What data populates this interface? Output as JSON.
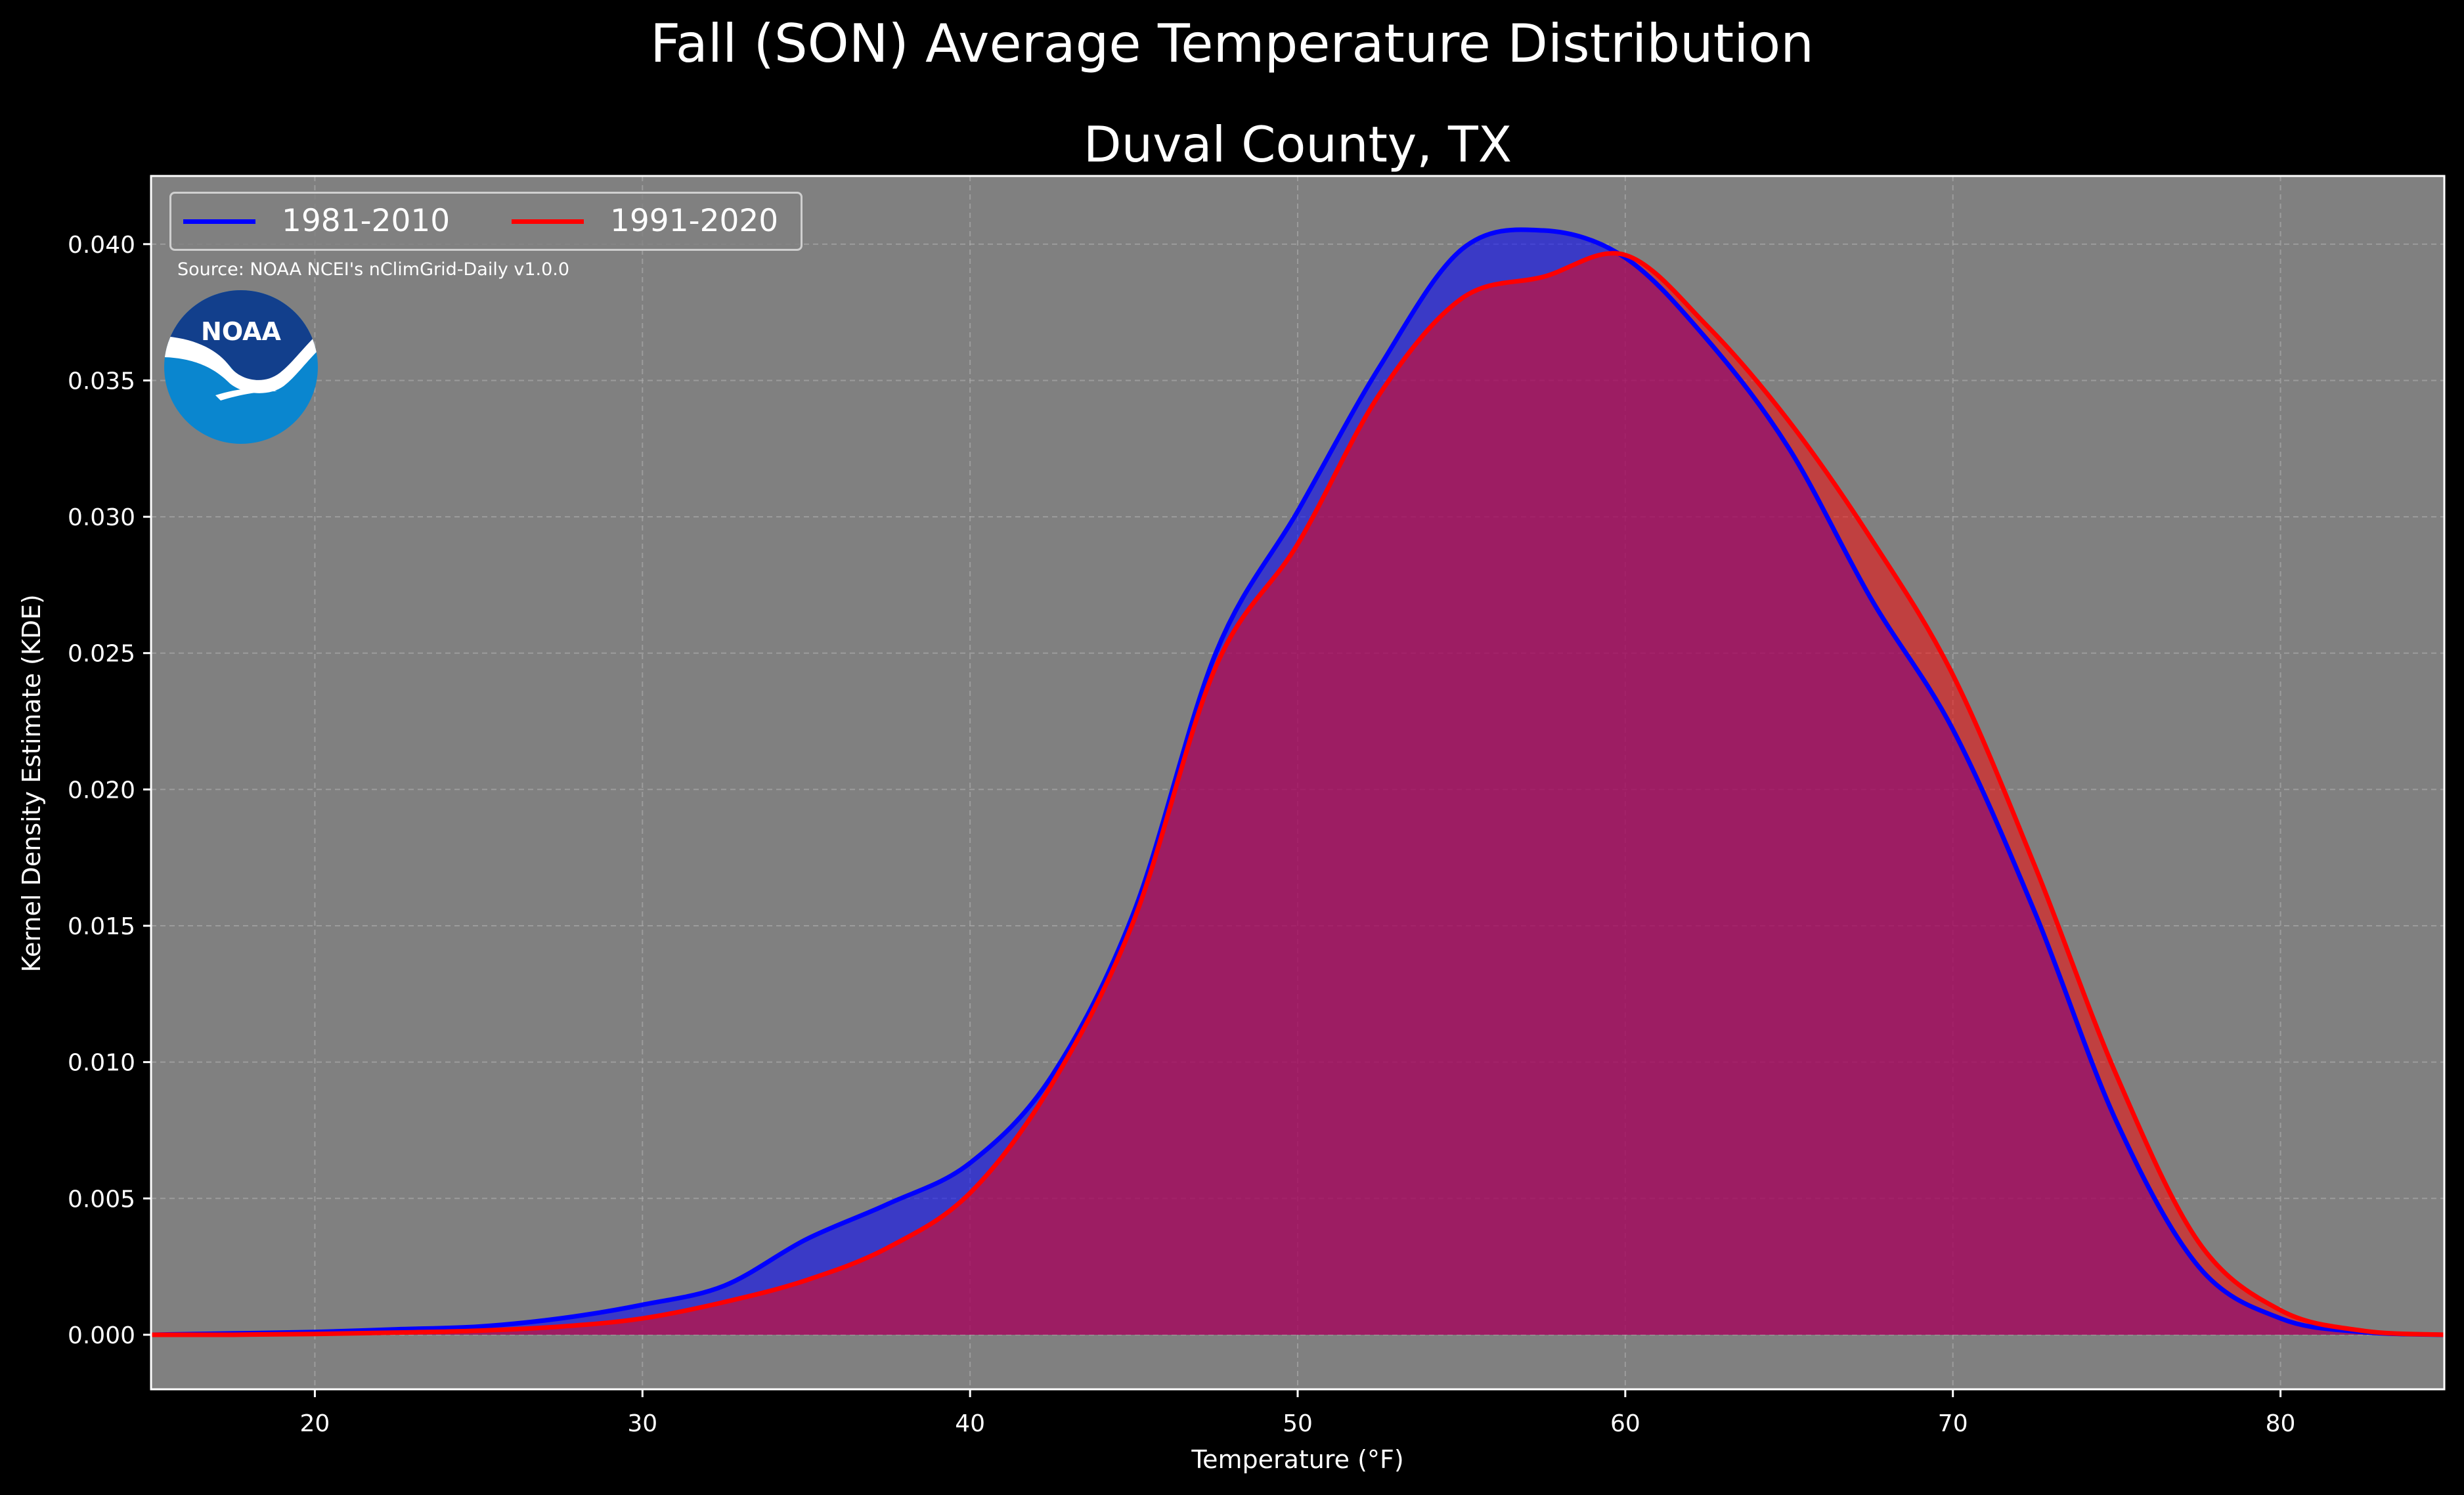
{
  "figure": {
    "suptitle": "Fall (SON) Average Temperature Distribution",
    "axes_title": "Duval County, TX",
    "source_note": "Source: NOAA NCEI's nClimGrid-Daily v1.0.0",
    "logo_text": "NOAA",
    "logo_icon": "noaa-logo",
    "colors": {
      "figure_bg": "#000000",
      "axes_bg": "#808080",
      "series_1981": "#0000ff",
      "series_1991": "#ff0000",
      "overlap_fill": "#9e1f5a"
    }
  },
  "chart_data": {
    "type": "area",
    "xlabel": "Temperature ($^\\circ$F)",
    "xlabel_display": "Temperature (°F)",
    "ylabel": "Kernel Density Estimate (KDE)",
    "xlim": [
      15,
      85
    ],
    "ylim": [
      -0.002,
      0.0425
    ],
    "xticks": [
      20,
      30,
      40,
      50,
      60,
      70,
      80
    ],
    "yticks": [
      0.0,
      0.005,
      0.01,
      0.015,
      0.02,
      0.025,
      0.03,
      0.035,
      0.04
    ],
    "ytick_labels": [
      "0.000",
      "0.005",
      "0.010",
      "0.015",
      "0.020",
      "0.025",
      "0.030",
      "0.035",
      "0.040"
    ],
    "grid": true,
    "legend_placement": "top-left",
    "x": [
      15,
      17.5,
      20,
      22.5,
      25,
      27.5,
      30,
      32.5,
      35,
      37.5,
      40,
      42.5,
      45,
      47.5,
      50,
      52.5,
      55,
      57.5,
      60,
      62.5,
      65,
      67.5,
      70,
      72.5,
      75,
      77.5,
      80,
      82.5,
      85
    ],
    "series": [
      {
        "name": "1981-2010",
        "color": "#0000ff",
        "values": [
          0.0,
          5e-05,
          0.0001,
          0.0002,
          0.0003,
          0.0006,
          0.0011,
          0.0018,
          0.0035,
          0.0048,
          0.0063,
          0.0095,
          0.0155,
          0.025,
          0.0302,
          0.0355,
          0.0398,
          0.0405,
          0.0395,
          0.0365,
          0.0325,
          0.027,
          0.0222,
          0.0155,
          0.0078,
          0.0025,
          0.0006,
          0.0001,
          0.0
        ]
      },
      {
        "name": "1991-2020",
        "color": "#ff0000",
        "values": [
          0.0,
          0.0,
          3e-05,
          8e-05,
          0.00015,
          0.0003,
          0.0006,
          0.0012,
          0.002,
          0.0032,
          0.0052,
          0.0092,
          0.0152,
          0.0245,
          0.029,
          0.0345,
          0.038,
          0.0388,
          0.0396,
          0.037,
          0.0335,
          0.0292,
          0.0242,
          0.0172,
          0.0095,
          0.0034,
          0.0009,
          0.00015,
          0.0
        ]
      }
    ]
  }
}
